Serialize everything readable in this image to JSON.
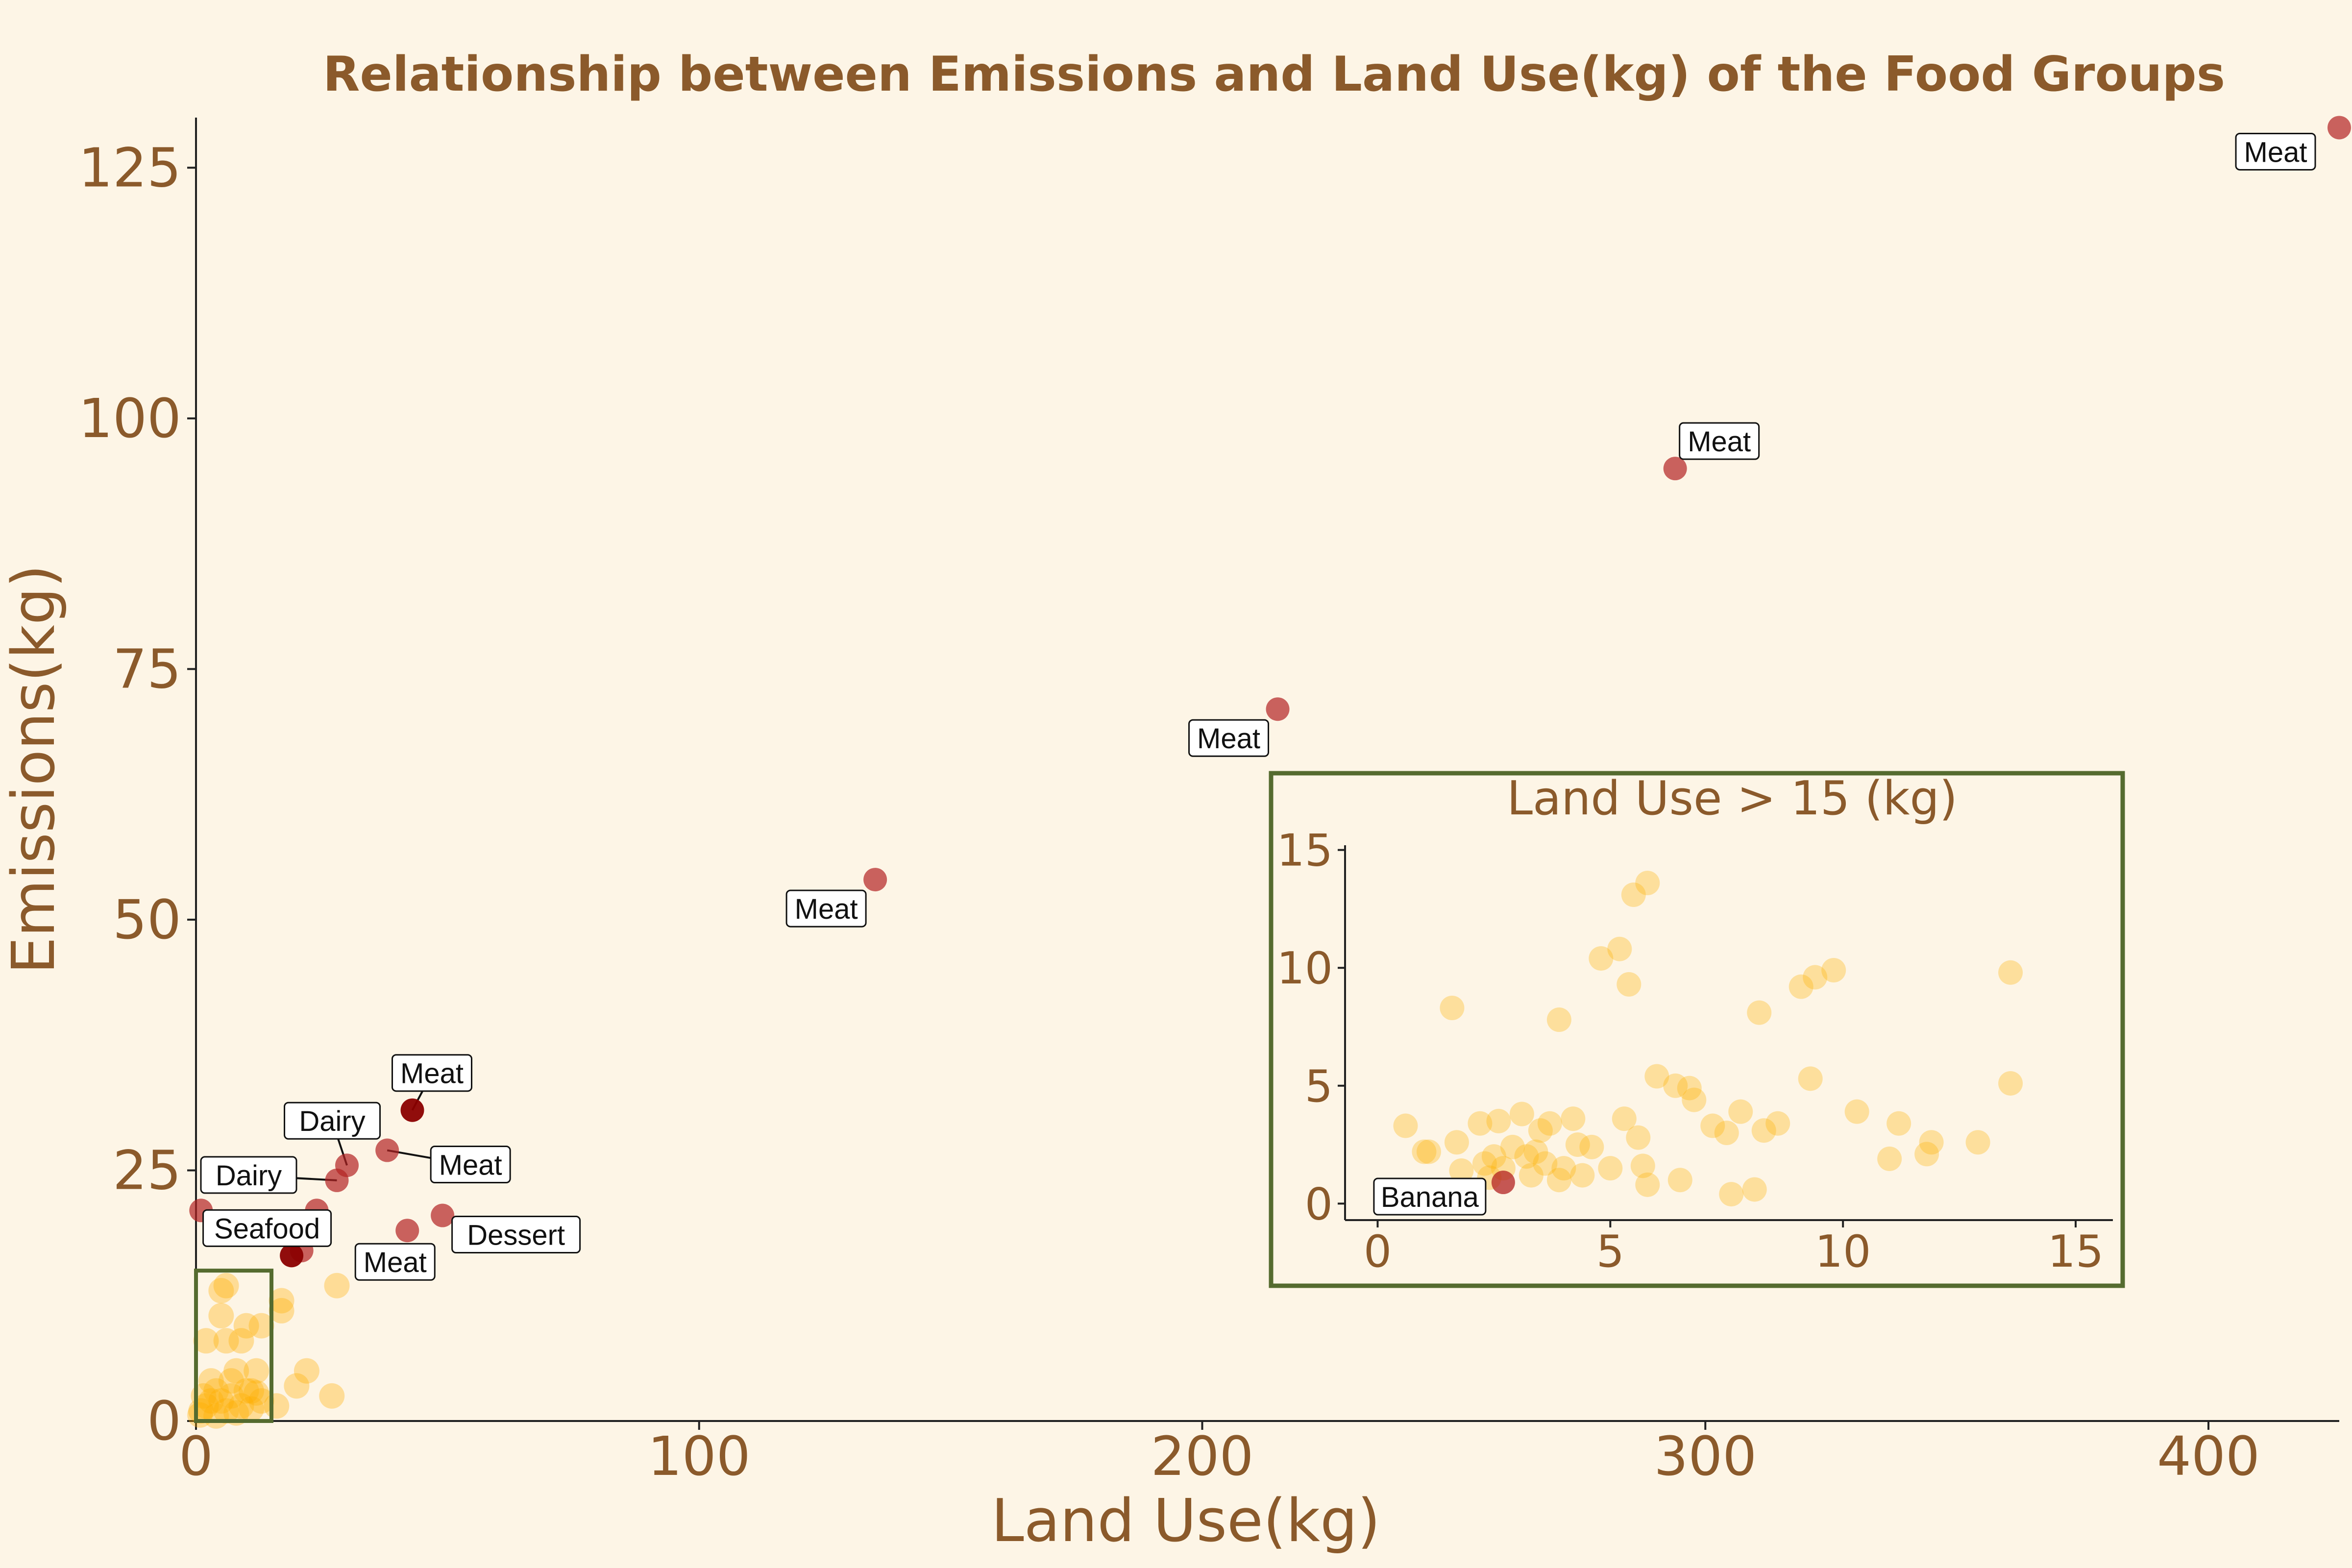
{
  "colors": {
    "background": "#fdf5e6",
    "text": "#8b5a2b",
    "highlight_point": "#b22222",
    "dark_point": "#8b0000",
    "other_point": "#ffb000",
    "inset_border": "#556b2f"
  },
  "chart_data": [
    {
      "type": "scatter",
      "title": "Relationship between Emissions and Land Use(kg) of the Food Groups",
      "xlabel": "Land Use(kg)",
      "ylabel": "Emissions(kg)",
      "xlim": [
        0,
        426
      ],
      "ylim": [
        0,
        130
      ],
      "xticks": [
        0,
        100,
        200,
        300,
        400
      ],
      "yticks": [
        0,
        25,
        50,
        75,
        100,
        125
      ],
      "grid": false,
      "highlight_box": {
        "x": [
          0,
          15
        ],
        "y": [
          0,
          15
        ]
      },
      "labeled_points": [
        {
          "x": 426,
          "y": 129,
          "label": "Meat"
        },
        {
          "x": 294,
          "y": 95,
          "label": "Meat"
        },
        {
          "x": 215,
          "y": 71,
          "label": "Meat"
        },
        {
          "x": 135,
          "y": 54,
          "label": "Meat"
        },
        {
          "x": 43,
          "y": 31,
          "label": "Meat",
          "dark": true
        },
        {
          "x": 38,
          "y": 27,
          "label": "Meat"
        },
        {
          "x": 30,
          "y": 25.5,
          "label": "Dairy"
        },
        {
          "x": 28,
          "y": 24,
          "label": "Dairy"
        },
        {
          "x": 49,
          "y": 20.5,
          "label": "Dessert"
        },
        {
          "x": 42,
          "y": 19,
          "label": "Meat"
        },
        {
          "x": 19,
          "y": 16.5,
          "label": "Seafood",
          "dark": true
        }
      ],
      "unlabeled_highlight_points": [
        {
          "x": 1,
          "y": 21
        },
        {
          "x": 24,
          "y": 21
        },
        {
          "x": 21,
          "y": 17
        }
      ],
      "other_points": [
        {
          "x": 28,
          "y": 13.5
        },
        {
          "x": 22,
          "y": 5
        },
        {
          "x": 20,
          "y": 3.5
        },
        {
          "x": 27,
          "y": 2.5
        },
        {
          "x": 17,
          "y": 12
        },
        {
          "x": 17,
          "y": 11
        },
        {
          "x": 16,
          "y": 1.5
        },
        {
          "x": 13,
          "y": 9.5
        },
        {
          "x": 5,
          "y": 13
        },
        {
          "x": 6,
          "y": 13.5
        },
        {
          "x": 2,
          "y": 8
        },
        {
          "x": 5,
          "y": 10.5
        },
        {
          "x": 10,
          "y": 9.5
        },
        {
          "x": 9,
          "y": 8
        },
        {
          "x": 6,
          "y": 8
        },
        {
          "x": 12,
          "y": 5
        },
        {
          "x": 11,
          "y": 3
        },
        {
          "x": 13,
          "y": 2
        },
        {
          "x": 8,
          "y": 5
        },
        {
          "x": 7,
          "y": 4
        },
        {
          "x": 4,
          "y": 3
        },
        {
          "x": 3,
          "y": 2
        },
        {
          "x": 2,
          "y": 1.5
        },
        {
          "x": 1,
          "y": 1
        },
        {
          "x": 5,
          "y": 2
        },
        {
          "x": 6,
          "y": 1
        },
        {
          "x": 9,
          "y": 1.5
        },
        {
          "x": 10,
          "y": 3
        },
        {
          "x": 4,
          "y": 0.5
        },
        {
          "x": 7,
          "y": 2.5
        },
        {
          "x": 8,
          "y": 0.8
        },
        {
          "x": 3,
          "y": 4
        },
        {
          "x": 1.5,
          "y": 2.5
        },
        {
          "x": 0.8,
          "y": 0.6
        },
        {
          "x": 11,
          "y": 1.2
        },
        {
          "x": 12,
          "y": 2.8
        }
      ]
    },
    {
      "type": "scatter",
      "title": "Land Use > 15 (kg)",
      "xlim": [
        -0.7,
        15.8
      ],
      "ylim": [
        -0.7,
        15.2
      ],
      "xticks": [
        0,
        5,
        10,
        15
      ],
      "yticks": [
        0,
        5,
        10,
        15
      ],
      "labeled_points": [
        {
          "x": 2.7,
          "y": 0.9,
          "label": "Banana"
        }
      ],
      "points": [
        {
          "x": 0.6,
          "y": 3.3
        },
        {
          "x": 1.0,
          "y": 2.2
        },
        {
          "x": 1.1,
          "y": 2.2
        },
        {
          "x": 1.6,
          "y": 8.3
        },
        {
          "x": 1.7,
          "y": 2.6
        },
        {
          "x": 1.8,
          "y": 1.4
        },
        {
          "x": 2.2,
          "y": 3.4
        },
        {
          "x": 2.3,
          "y": 1.7
        },
        {
          "x": 2.4,
          "y": 1.1
        },
        {
          "x": 2.5,
          "y": 2.0
        },
        {
          "x": 2.6,
          "y": 3.5
        },
        {
          "x": 2.7,
          "y": 1.5
        },
        {
          "x": 2.9,
          "y": 2.4
        },
        {
          "x": 3.1,
          "y": 3.8
        },
        {
          "x": 3.2,
          "y": 2.0
        },
        {
          "x": 3.3,
          "y": 1.2
        },
        {
          "x": 3.4,
          "y": 2.2
        },
        {
          "x": 3.5,
          "y": 3.1
        },
        {
          "x": 3.6,
          "y": 1.7
        },
        {
          "x": 3.7,
          "y": 3.4
        },
        {
          "x": 3.9,
          "y": 1.0
        },
        {
          "x": 3.9,
          "y": 7.8
        },
        {
          "x": 4.0,
          "y": 1.5
        },
        {
          "x": 4.2,
          "y": 3.6
        },
        {
          "x": 4.3,
          "y": 2.5
        },
        {
          "x": 4.4,
          "y": 1.2
        },
        {
          "x": 4.6,
          "y": 2.4
        },
        {
          "x": 4.8,
          "y": 10.4
        },
        {
          "x": 5.0,
          "y": 1.5
        },
        {
          "x": 5.2,
          "y": 10.8
        },
        {
          "x": 5.3,
          "y": 3.6
        },
        {
          "x": 5.4,
          "y": 9.3
        },
        {
          "x": 5.5,
          "y": 13.1
        },
        {
          "x": 5.6,
          "y": 2.8
        },
        {
          "x": 5.7,
          "y": 1.6
        },
        {
          "x": 5.8,
          "y": 13.6
        },
        {
          "x": 5.8,
          "y": 0.8
        },
        {
          "x": 6.0,
          "y": 5.4
        },
        {
          "x": 6.4,
          "y": 5.0
        },
        {
          "x": 6.5,
          "y": 1.0
        },
        {
          "x": 6.7,
          "y": 4.9
        },
        {
          "x": 6.8,
          "y": 4.4
        },
        {
          "x": 7.2,
          "y": 3.3
        },
        {
          "x": 7.5,
          "y": 3.0
        },
        {
          "x": 7.6,
          "y": 0.4
        },
        {
          "x": 7.8,
          "y": 3.9
        },
        {
          "x": 8.1,
          "y": 0.6
        },
        {
          "x": 8.2,
          "y": 8.1
        },
        {
          "x": 8.3,
          "y": 3.1
        },
        {
          "x": 8.6,
          "y": 3.4
        },
        {
          "x": 9.1,
          "y": 9.2
        },
        {
          "x": 9.3,
          "y": 5.3
        },
        {
          "x": 9.4,
          "y": 9.6
        },
        {
          "x": 9.8,
          "y": 9.9
        },
        {
          "x": 10.3,
          "y": 3.9
        },
        {
          "x": 11.0,
          "y": 1.9
        },
        {
          "x": 11.2,
          "y": 3.4
        },
        {
          "x": 11.8,
          "y": 2.1
        },
        {
          "x": 11.9,
          "y": 2.6
        },
        {
          "x": 12.9,
          "y": 2.6
        },
        {
          "x": 13.6,
          "y": 9.8
        },
        {
          "x": 13.6,
          "y": 5.1
        }
      ]
    }
  ]
}
